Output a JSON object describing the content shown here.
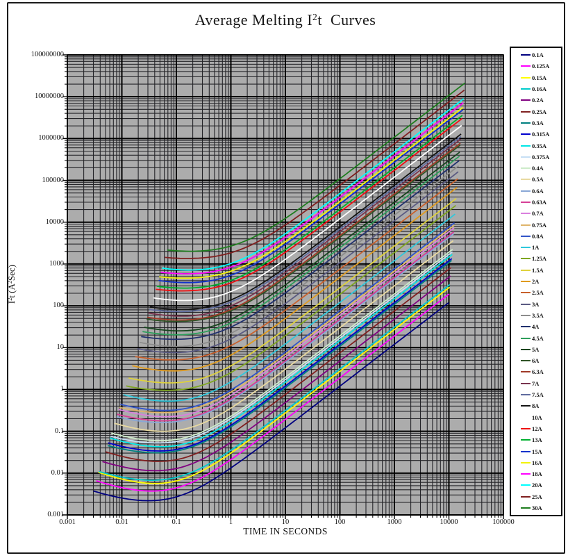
{
  "figure": {
    "title": {
      "pre": "Average Melting I",
      "sup": "2",
      "post": "t  Curves"
    },
    "xlabel": "TIME IN SECONDS",
    "ylabel": {
      "pre": "I",
      "sup1": "2",
      "mid": "t (A",
      "sup2": "2",
      "post": "Sec)"
    }
  },
  "chart_data": {
    "type": "line",
    "title": "Average Melting I2t Curves",
    "xlabel": "TIME IN SECONDS",
    "ylabel": "I2t (A2Sec)",
    "x_scale": "log",
    "y_scale": "log",
    "xlim": [
      0.001,
      100000
    ],
    "ylim": [
      0.001,
      100000000
    ],
    "x_tick_labels": [
      "0.001",
      "0.01",
      "0.1",
      "1",
      "10",
      "100",
      "1000",
      "10000",
      "100000"
    ],
    "y_tick_labels": [
      "0.001",
      "0.01",
      "0.1",
      "1",
      "10",
      "100",
      "1000",
      "10000",
      "100000",
      "1000000",
      "10000000",
      "100000000"
    ],
    "grid": {
      "major": true,
      "minor": true,
      "color": "black",
      "plot_background": "#ACACAC"
    },
    "legend_position": "right-outside",
    "model": "Each fuse-rating curve: i2t(t) = M*(d*(0.02/t)^0.6 + (1-d)) + L*t  for t in [t_start, t_end]; M = adiabatic melting I2t (dip level, A2Sec), L = long-time slope-1 coefficient (I_melt^2), d ~= 0.45",
    "series": [
      {
        "label": "0.1A",
        "color": "#000080",
        "M": 0.002,
        "L": 0.012,
        "t_start": 0.003,
        "t_end": 9900
      },
      {
        "label": "0.125A",
        "color": "#FF00FF",
        "M": 0.0035,
        "L": 0.019,
        "t_start": 0.0034,
        "t_end": 10100
      },
      {
        "label": "0.15A",
        "color": "#FFFF00",
        "M": 0.0055,
        "L": 0.027,
        "t_start": 0.0037,
        "t_end": 10300
      },
      {
        "label": "0.16A",
        "color": "#00CCCC",
        "M": 0.0064,
        "L": 0.031,
        "t_start": 0.0038,
        "t_end": 10400
      },
      {
        "label": "0.2A",
        "color": "#800080",
        "M": 0.0112,
        "L": 0.048,
        "t_start": 0.0044,
        "t_end": 10700
      },
      {
        "label": "0.25A",
        "color": "#802020",
        "M": 0.0194,
        "L": 0.075,
        "t_start": 0.005,
        "t_end": 11000
      },
      {
        "label": "0.3A",
        "color": "#008080",
        "M": 0.0305,
        "L": 0.108,
        "t_start": 0.0055,
        "t_end": 11250
      },
      {
        "label": "0.315A",
        "color": "#0000CD",
        "M": 0.0344,
        "L": 0.119,
        "t_start": 0.0056,
        "t_end": 11300
      },
      {
        "label": "0.35A",
        "color": "#00E6E6",
        "M": 0.0447,
        "L": 0.147,
        "t_start": 0.006,
        "t_end": 11500
      },
      {
        "label": "0.375A",
        "color": "#C6DFF5",
        "M": 0.053,
        "L": 0.169,
        "t_start": 0.0062,
        "t_end": 11600
      },
      {
        "label": "0.4A",
        "color": "#CDEBC9",
        "M": 0.062,
        "L": 0.192,
        "t_start": 0.0064,
        "t_end": 11650
      },
      {
        "label": "0.5A",
        "color": "#E8D9A0",
        "M": 0.108,
        "L": 0.3,
        "t_start": 0.0073,
        "t_end": 11960
      },
      {
        "label": "0.6A",
        "color": "#89A7D6",
        "M": 0.169,
        "L": 0.432,
        "t_start": 0.008,
        "t_end": 12230
      },
      {
        "label": "0.63A",
        "color": "#D63F96",
        "M": 0.191,
        "L": 0.476,
        "t_start": 0.0082,
        "t_end": 12300
      },
      {
        "label": "0.7A",
        "color": "#DA7FDE",
        "M": 0.248,
        "L": 0.588,
        "t_start": 0.0087,
        "t_end": 12450
      },
      {
        "label": "0.75A",
        "color": "#DFB56B",
        "M": 0.294,
        "L": 0.675,
        "t_start": 0.009,
        "t_end": 12560
      },
      {
        "label": "0.8A",
        "color": "#3355C8",
        "M": 0.345,
        "L": 0.768,
        "t_start": 0.0094,
        "t_end": 12660
      },
      {
        "label": "1A",
        "color": "#2FC8DC",
        "M": 0.6,
        "L": 1.2,
        "t_start": 0.0107,
        "t_end": 13000
      },
      {
        "label": "1.25A",
        "color": "#7FA621",
        "M": 1.04,
        "L": 1.875,
        "t_start": 0.012,
        "t_end": 13350
      },
      {
        "label": "1.5A",
        "color": "#DFD23C",
        "M": 1.64,
        "L": 2.7,
        "t_start": 0.0133,
        "t_end": 13650
      },
      {
        "label": "2A",
        "color": "#E09B1E",
        "M": 3.34,
        "L": 4.8,
        "t_start": 0.0155,
        "t_end": 14130
      },
      {
        "label": "2.5A",
        "color": "#C8602C",
        "M": 5.8,
        "L": 7.5,
        "t_start": 0.0175,
        "t_end": 14500
      },
      {
        "label": "3A",
        "color": "#5A5A82",
        "M": 9.1,
        "L": 10.8,
        "t_start": 0.0193,
        "t_end": 14830
      },
      {
        "label": "3.5A",
        "color": "#8C8C8C",
        "M": 13.3,
        "L": 14.7,
        "t_start": 0.021,
        "t_end": 15100
      },
      {
        "label": "4A",
        "color": "#20306E",
        "M": 18.5,
        "L": 19.2,
        "t_start": 0.0226,
        "t_end": 15350
      },
      {
        "label": "4.5A",
        "color": "#2E9E5B",
        "M": 24.8,
        "L": 24.3,
        "t_start": 0.024,
        "t_end": 15570
      },
      {
        "label": "5A",
        "color": "#17461F",
        "M": 32.2,
        "L": 30,
        "t_start": 0.0257,
        "t_end": 15770
      },
      {
        "label": "6A",
        "color": "#2F5326",
        "M": 50.6,
        "L": 43.2,
        "t_start": 0.0284,
        "t_end": 16120
      },
      {
        "label": "6.3A",
        "color": "#A03A28",
        "M": 57,
        "L": 47.6,
        "t_start": 0.0292,
        "t_end": 16210
      },
      {
        "label": "7A",
        "color": "#79344F",
        "M": 74,
        "L": 58.8,
        "t_start": 0.0307,
        "t_end": 16420
      },
      {
        "label": "7.5A",
        "color": "#5F6B9E",
        "M": 88,
        "L": 67.5,
        "t_start": 0.0319,
        "t_end": 16550
      },
      {
        "label": "8A",
        "color": "#141414",
        "M": 103,
        "L": 76.8,
        "t_start": 0.033,
        "t_end": 16690
      },
      {
        "label": "10A",
        "color": "#FFFFFF",
        "M": 179,
        "L": 120,
        "t_start": 0.038,
        "t_end": 17130
      },
      {
        "label": "12A",
        "color": "#EE1111",
        "M": 281,
        "L": 172.8,
        "t_start": 0.042,
        "t_end": 17510
      },
      {
        "label": "13A",
        "color": "#00B030",
        "M": 343,
        "L": 202.8,
        "t_start": 0.0437,
        "t_end": 17680
      },
      {
        "label": "15A",
        "color": "#1133CC",
        "M": 489,
        "L": 270,
        "t_start": 0.047,
        "t_end": 17990
      },
      {
        "label": "16A",
        "color": "#F2F20A",
        "M": 573,
        "L": 307,
        "t_start": 0.0485,
        "t_end": 18130
      },
      {
        "label": "18A",
        "color": "#FF00FF",
        "M": 767,
        "L": 389,
        "t_start": 0.0517,
        "t_end": 18390
      },
      {
        "label": "20A",
        "color": "#00FFFF",
        "M": 996,
        "L": 480,
        "t_start": 0.0546,
        "t_end": 18630
      },
      {
        "label": "25A",
        "color": "#7F1F1F",
        "M": 1730,
        "L": 750,
        "t_start": 0.0617,
        "t_end": 19140
      },
      {
        "label": "30A",
        "color": "#1E7D1E",
        "M": 2717,
        "L": 1080,
        "t_start": 0.068,
        "t_end": 19570
      }
    ]
  }
}
